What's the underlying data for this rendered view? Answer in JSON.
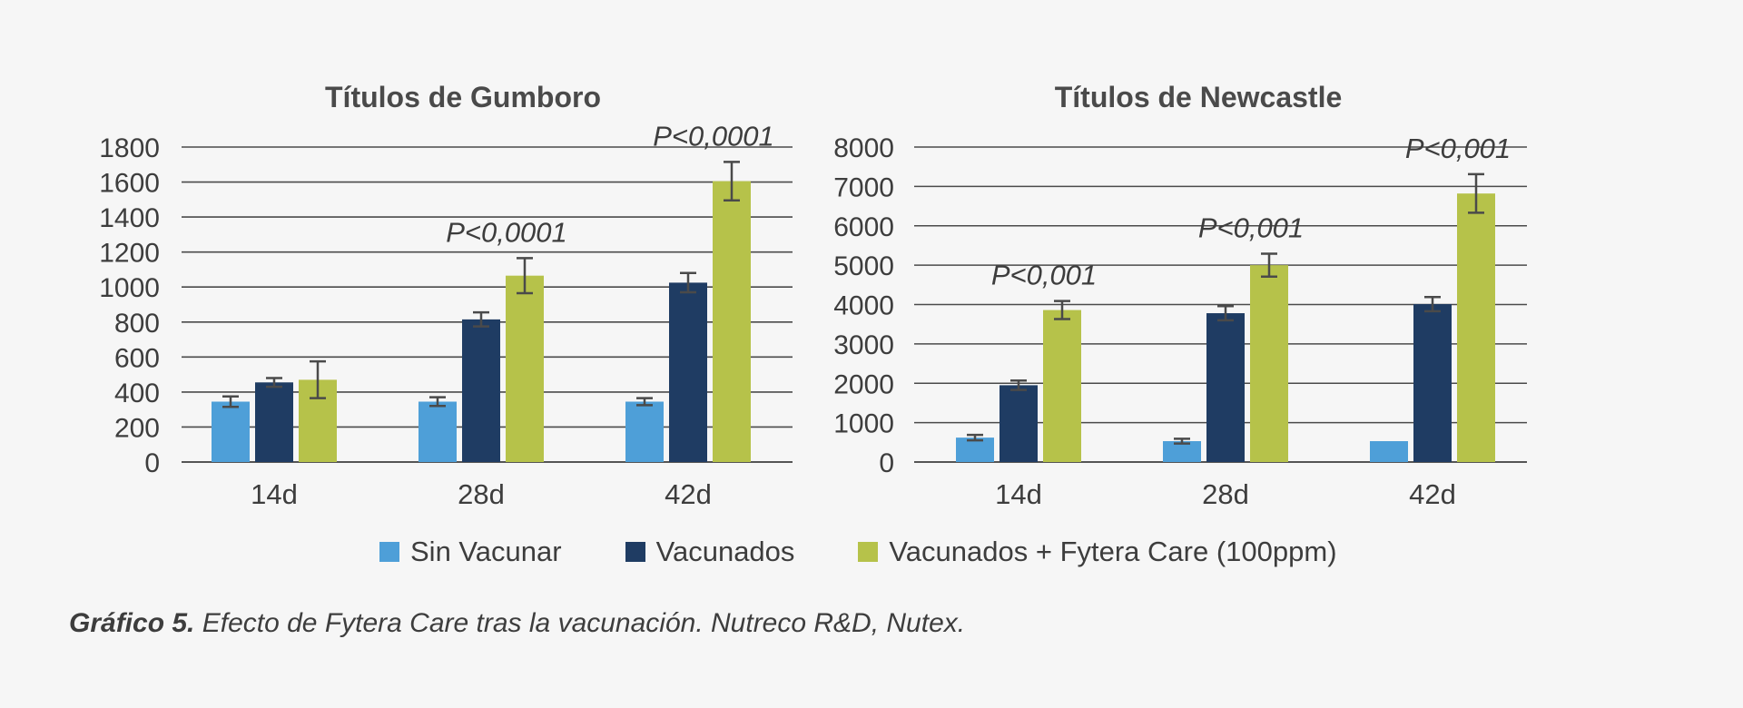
{
  "legend": [
    {
      "label": "Sin Vacunar",
      "color": "#4e9fd8"
    },
    {
      "label": "Vacunados",
      "color": "#1f3c63"
    },
    {
      "label": "Vacunados + Fytera Care (100ppm)",
      "color": "#b6c24a"
    }
  ],
  "caption": {
    "prefix": "Gráfico 5.",
    "text": "Efecto de Fytera Care tras la vacunación. Nutreco R&D, Nutex."
  },
  "chart_data": [
    {
      "type": "bar",
      "title": "Títulos de Gumboro",
      "categories": [
        "14d",
        "28d",
        "42d"
      ],
      "ylim": [
        0,
        1800
      ],
      "yticks": [
        0,
        200,
        400,
        600,
        800,
        1000,
        1200,
        1400,
        1600,
        1800
      ],
      "grid": true,
      "series": [
        {
          "name": "Sin Vacunar",
          "values": [
            345,
            345,
            345
          ],
          "errors": [
            30,
            25,
            20
          ]
        },
        {
          "name": "Vacunados",
          "values": [
            455,
            815,
            1025
          ],
          "errors": [
            25,
            40,
            55
          ]
        },
        {
          "name": "Vacunados + Fytera Care (100ppm)",
          "values": [
            470,
            1065,
            1605
          ],
          "errors": [
            105,
            100,
            110
          ]
        }
      ],
      "annotations": [
        {
          "category": "28d",
          "text": "P<0,0001"
        },
        {
          "category": "42d",
          "text": "P<0,0001"
        }
      ]
    },
    {
      "type": "bar",
      "title": "Títulos de Newcastle",
      "categories": [
        "14d",
        "28d",
        "42d"
      ],
      "ylim": [
        0,
        8000
      ],
      "yticks": [
        0,
        1000,
        2000,
        3000,
        4000,
        5000,
        6000,
        7000,
        8000
      ],
      "grid": true,
      "series": [
        {
          "name": "Sin Vacunar",
          "values": [
            620,
            530,
            530
          ],
          "errors": [
            70,
            60,
            0
          ]
        },
        {
          "name": "Vacunados",
          "values": [
            1950,
            3780,
            4010
          ],
          "errors": [
            120,
            180,
            180
          ]
        },
        {
          "name": "Vacunados + Fytera Care (100ppm)",
          "values": [
            3860,
            5000,
            6820
          ],
          "errors": [
            230,
            290,
            490
          ]
        }
      ],
      "annotations": [
        {
          "category": "14d",
          "text": "P<0,001"
        },
        {
          "category": "28d",
          "text": "P<0,001"
        },
        {
          "category": "42d",
          "text": "P<0,001"
        }
      ]
    }
  ]
}
